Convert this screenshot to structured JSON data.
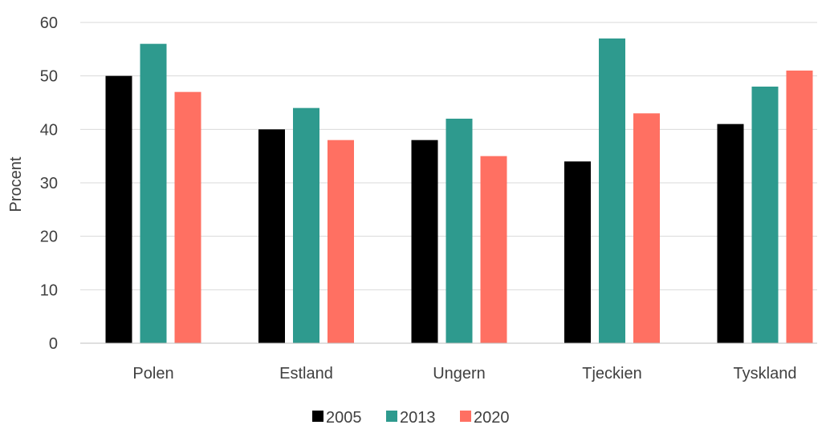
{
  "chart_data": {
    "type": "bar",
    "categories": [
      "Polen",
      "Estland",
      "Ungern",
      "Tjeckien",
      "Tyskland"
    ],
    "series": [
      {
        "name": "2005",
        "values": [
          50,
          40,
          38,
          34,
          41
        ],
        "color": "#000000"
      },
      {
        "name": "2013",
        "values": [
          56,
          44,
          42,
          57,
          48
        ],
        "color": "#2e9a8e"
      },
      {
        "name": "2020",
        "values": [
          47,
          38,
          35,
          43,
          51
        ],
        "color": "#ff7062"
      }
    ],
    "title": "",
    "xlabel": "",
    "ylabel": "Procent",
    "ylim": [
      0,
      60
    ],
    "yticks": [
      0,
      10,
      20,
      30,
      40,
      50,
      60
    ],
    "grid": true,
    "legend": "bottom-center"
  }
}
